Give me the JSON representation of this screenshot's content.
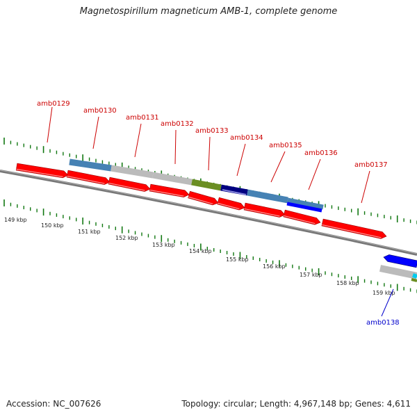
{
  "title": "Magnetospirillum magneticum AMB-1, complete genome",
  "footer": {
    "accession": "Accession: NC_007626",
    "summary": "Topology: circular; Length: 4,967,148 bp; Genes: 4,611"
  },
  "colors": {
    "forward_label": "#cc0000",
    "reverse_label": "#0000cc",
    "backbone": "#777777",
    "tick": "#117711",
    "cds": "#ff0000",
    "steelblue": "#4682b4",
    "gray": "#bbbbbb",
    "olive": "#6b8e23",
    "navy": "#000080",
    "blue": "#0000ff",
    "cyan": "#00ccee"
  },
  "kbp_ticks": [
    "149 kbp",
    "150 kbp",
    "151 kbp",
    "152 kbp",
    "153 kbp",
    "154 kbp",
    "155 kbp",
    "156 kbp",
    "157 kbp",
    "158 kbp",
    "159 kbp"
  ],
  "gene_labels": [
    {
      "text": "amb0129",
      "strand": "forward"
    },
    {
      "text": "amb0130",
      "strand": "forward"
    },
    {
      "text": "amb0131",
      "strand": "forward"
    },
    {
      "text": "amb0132",
      "strand": "forward"
    },
    {
      "text": "amb0133",
      "strand": "forward"
    },
    {
      "text": "amb0134",
      "strand": "forward"
    },
    {
      "text": "amb0135",
      "strand": "forward"
    },
    {
      "text": "amb0136",
      "strand": "forward"
    },
    {
      "text": "amb0137",
      "strand": "forward"
    },
    {
      "text": "amb0138",
      "strand": "reverse"
    }
  ]
}
